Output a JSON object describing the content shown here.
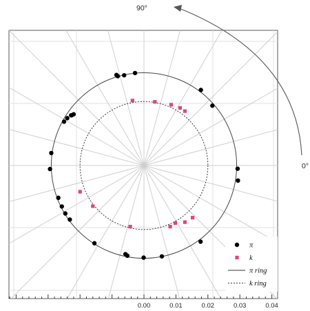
{
  "chart_data": {
    "type": "scatter",
    "title": "",
    "xlabel": "",
    "ylabel": "",
    "xlim": [
      -0.0425,
      0.0425
    ],
    "ylim": [
      -0.0425,
      0.0425
    ],
    "x_ticks": [
      0.0,
      0.01,
      0.02,
      0.03,
      0.04
    ],
    "x_tick_labels": [
      "0.00",
      "0.01",
      "0.02",
      "0.03",
      "0.04"
    ],
    "x_minor_tick_step": 0.002,
    "grid": true,
    "spokes": 24,
    "legend_position": "bottom-right",
    "rings": [
      {
        "name": "π ring",
        "radius": 0.029,
        "style": "solid"
      },
      {
        "name": "k ring",
        "radius": 0.02,
        "style": "dashed"
      }
    ],
    "series": [
      {
        "name": "π",
        "marker": "circle",
        "color": "#000000",
        "points": [
          [
            -0.0086,
            0.0283
          ],
          [
            -0.0082,
            0.0279
          ],
          [
            -0.0062,
            0.0282
          ],
          [
            -0.0028,
            0.0289
          ],
          [
            0.0178,
            0.0236
          ],
          [
            0.0214,
            0.0187
          ],
          [
            -0.022,
            0.016
          ],
          [
            -0.0228,
            0.0157
          ],
          [
            -0.0226,
            0.0157
          ],
          [
            -0.024,
            0.0148
          ],
          [
            -0.025,
            0.0137
          ],
          [
            -0.029,
            0.0039
          ],
          [
            -0.0294,
            -0.0011
          ],
          [
            0.0293,
            -0.001
          ],
          [
            0.0294,
            -0.0047
          ],
          [
            -0.0268,
            -0.0101
          ],
          [
            -0.0257,
            -0.0128
          ],
          [
            -0.0246,
            -0.015
          ],
          [
            -0.0232,
            -0.0169
          ],
          [
            -0.0155,
            -0.0243
          ],
          [
            -0.0058,
            -0.0277
          ],
          [
            -0.0052,
            -0.0282
          ],
          [
            -0.0001,
            -0.0288
          ],
          [
            0.0056,
            -0.0284
          ],
          [
            0.0177,
            -0.0238
          ]
        ]
      },
      {
        "name": "k",
        "marker": "square",
        "color": "#e0457b",
        "points": [
          [
            -0.0036,
            0.0203
          ],
          [
            0.0034,
            0.0199
          ],
          [
            0.0085,
            0.019
          ],
          [
            0.0113,
            0.018
          ],
          [
            0.0128,
            0.017
          ],
          [
            -0.02,
            -0.0082
          ],
          [
            -0.016,
            -0.0127
          ],
          [
            -0.0043,
            -0.0191
          ],
          [
            0.0082,
            -0.0191
          ],
          [
            0.0098,
            -0.018
          ],
          [
            0.0128,
            -0.0177
          ],
          [
            0.0152,
            -0.0163
          ]
        ]
      }
    ],
    "annotations": [
      "90°",
      "0°"
    ]
  }
}
